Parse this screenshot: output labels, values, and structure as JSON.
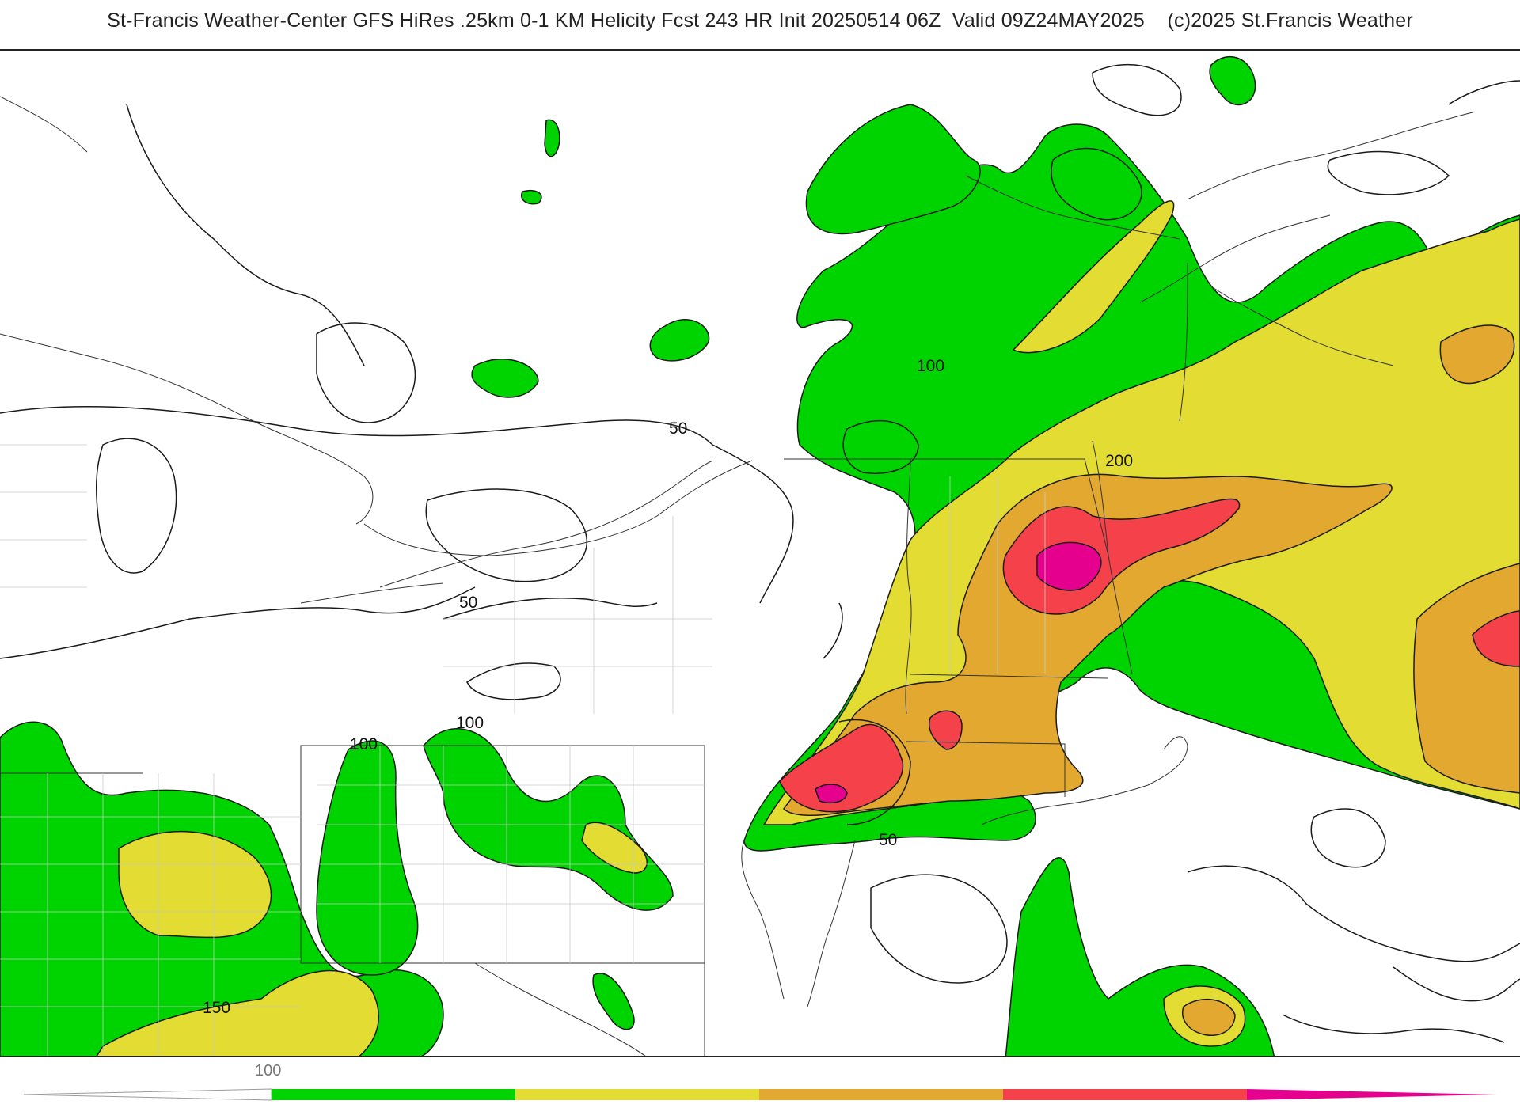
{
  "header": {
    "title": "St-Francis Weather-Center GFS HiRes .25km 0-1 KM Helicity Fcst 243 HR Init 20250514 06Z  Valid 09Z24MAY2025    (c)2025 St.Francis Weather"
  },
  "map": {
    "contour_labels": [
      "50",
      "50",
      "50",
      "100",
      "100",
      "100",
      "150",
      "200"
    ]
  },
  "legend": {
    "tick_label": "100",
    "colors": [
      "#cfcfcf",
      "#00d400",
      "#e3dc33",
      "#e3a830",
      "#f5424a",
      "#e6008e"
    ]
  }
}
